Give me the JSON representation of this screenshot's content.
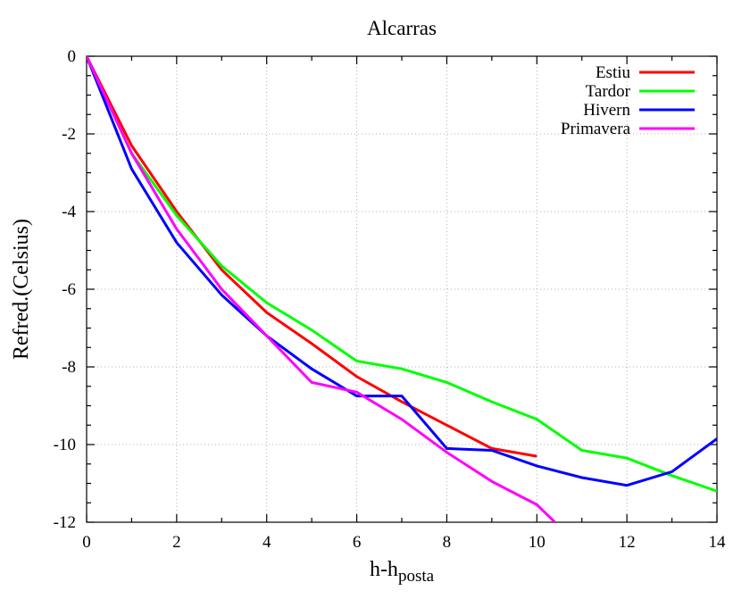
{
  "chart_data": {
    "type": "line",
    "title": "Alcarras",
    "xlabel": "h-h",
    "xlabel_subscript": "posta",
    "ylabel": "Refred.(Celsius)",
    "xlim": [
      0,
      14
    ],
    "ylim": [
      -12,
      0
    ],
    "xticks": [
      0,
      2,
      4,
      6,
      8,
      10,
      12,
      14
    ],
    "yticks": [
      0,
      -2,
      -4,
      -6,
      -8,
      -10,
      -12
    ],
    "xtick_labels": [
      "0",
      "2",
      "4",
      "6",
      "8",
      "10",
      "12",
      "14"
    ],
    "ytick_labels": [
      "0",
      "-2",
      "-4",
      "-6",
      "-8",
      "-10",
      "-12"
    ],
    "grid": true,
    "legend_position": "top-right",
    "series": [
      {
        "name": "Estiu",
        "color": "#ff0000",
        "x": [
          0,
          1,
          2,
          3,
          4,
          5,
          6,
          7,
          8,
          9,
          10
        ],
        "y": [
          0,
          -2.3,
          -4.0,
          -5.5,
          -6.6,
          -7.4,
          -8.25,
          -8.9,
          -9.5,
          -10.1,
          -10.3
        ]
      },
      {
        "name": "Tardor",
        "color": "#00ff00",
        "x": [
          0,
          1,
          2,
          3,
          4,
          5,
          6,
          7,
          8,
          9,
          10,
          11,
          12,
          13,
          14
        ],
        "y": [
          0,
          -2.5,
          -4.1,
          -5.4,
          -6.35,
          -7.05,
          -7.85,
          -8.05,
          -8.4,
          -8.9,
          -9.35,
          -10.15,
          -10.35,
          -10.8,
          -11.2
        ]
      },
      {
        "name": "Hivern",
        "color": "#0000ff",
        "x": [
          0,
          1,
          2,
          3,
          4,
          5,
          6,
          7,
          8,
          9,
          10,
          11,
          12,
          13,
          14
        ],
        "y": [
          0,
          -2.9,
          -4.8,
          -6.15,
          -7.2,
          -8.05,
          -8.75,
          -8.75,
          -10.1,
          -10.15,
          -10.55,
          -10.85,
          -11.05,
          -10.7,
          -9.85
        ]
      },
      {
        "name": "Primavera",
        "color": "#ff00ff",
        "x": [
          0,
          1,
          2,
          3,
          4,
          5,
          6,
          7,
          8,
          9,
          10,
          10.4
        ],
        "y": [
          0,
          -2.5,
          -4.45,
          -6.0,
          -7.2,
          -8.4,
          -8.65,
          -9.35,
          -10.2,
          -10.95,
          -11.55,
          -12
        ]
      }
    ]
  }
}
